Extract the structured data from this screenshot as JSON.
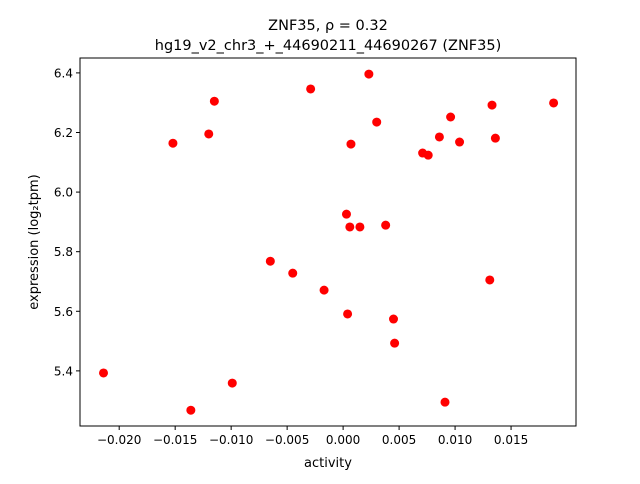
{
  "chart_data": {
    "type": "scatter",
    "title_line1": "ZNF35, ρ = 0.32",
    "title_line2": "hg19_v2_chr3_+_44690211_44690267 (ZNF35)",
    "xlabel": "activity",
    "ylabel": "expression (log₂tpm)",
    "xlim": [
      -0.0235,
      0.0208
    ],
    "ylim": [
      5.215,
      6.45
    ],
    "xticks": [
      -0.02,
      -0.015,
      -0.01,
      -0.005,
      0.0,
      0.005,
      0.01,
      0.015
    ],
    "xtick_labels": [
      "−0.020",
      "−0.015",
      "−0.010",
      "−0.005",
      "0.000",
      "0.005",
      "0.010",
      "0.015"
    ],
    "yticks": [
      5.4,
      5.6,
      5.8,
      6.0,
      6.2,
      6.4
    ],
    "ytick_labels": [
      "5.4",
      "5.6",
      "5.8",
      "6.0",
      "6.2",
      "6.4"
    ],
    "grid": false,
    "marker_color": "#ff0000",
    "points": [
      [
        -0.0214,
        5.393
      ],
      [
        -0.0136,
        5.268
      ],
      [
        -0.0099,
        5.359
      ],
      [
        -0.0152,
        6.164
      ],
      [
        -0.012,
        6.195
      ],
      [
        -0.0115,
        6.305
      ],
      [
        -0.0065,
        5.768
      ],
      [
        -0.0045,
        5.728
      ],
      [
        -0.0029,
        6.346
      ],
      [
        -0.0017,
        5.671
      ],
      [
        0.0003,
        5.926
      ],
      [
        0.0004,
        5.591
      ],
      [
        0.0006,
        5.883
      ],
      [
        0.0007,
        6.161
      ],
      [
        0.0015,
        5.883
      ],
      [
        0.0023,
        6.396
      ],
      [
        0.003,
        6.235
      ],
      [
        0.0038,
        5.889
      ],
      [
        0.0045,
        5.574
      ],
      [
        0.0046,
        5.493
      ],
      [
        0.0071,
        6.131
      ],
      [
        0.0076,
        6.124
      ],
      [
        0.0086,
        6.185
      ],
      [
        0.0091,
        5.295
      ],
      [
        0.0096,
        6.252
      ],
      [
        0.0104,
        6.168
      ],
      [
        0.0131,
        5.705
      ],
      [
        0.0133,
        6.292
      ],
      [
        0.0136,
        6.181
      ],
      [
        0.0188,
        6.299
      ]
    ]
  }
}
